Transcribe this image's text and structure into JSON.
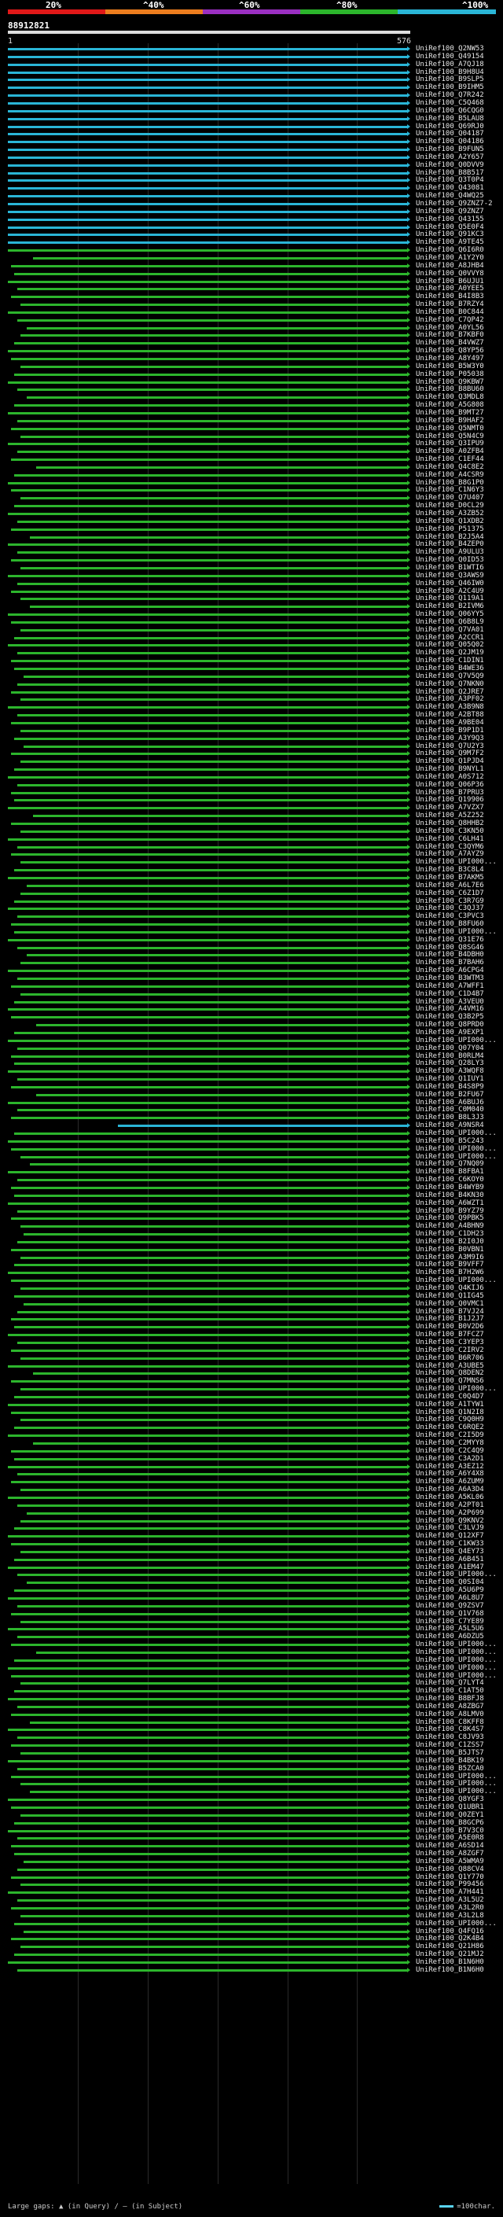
{
  "header": {
    "percent_labels": [
      "20%",
      "^40%",
      "^60%",
      "^80%",
      "^100%"
    ],
    "identity_colors": [
      "#e01818",
      "#ec7d1e",
      "#9a2fc1",
      "#2cb52c",
      "#2ab5d6"
    ],
    "query_id": "88912821",
    "query_start": "1",
    "query_end": "576"
  },
  "legend": {
    "left_text": "Large gaps: ▲ (in Query) / — (in Subject)",
    "right_text": "=100char."
  },
  "hits": [
    "UniRef100_Q2NW53",
    "UniRef100_Q49154",
    "UniRef100_A7QJ18",
    "UniRef100_B9H8U4",
    "UniRef100_B9SLP5",
    "UniRef100_B9IHM5",
    "UniRef100_Q7R242",
    "UniRef100_C5Q468",
    "UniRef100_Q6CQG0",
    "UniRef100_B5LAU8",
    "UniRef100_Q69RJ0",
    "UniRef100_Q04187",
    "UniRef100_Q04186",
    "UniRef100_B9FUN5",
    "UniRef100_A2Y657",
    "UniRef100_Q0DVV9",
    "UniRef100_B8B517",
    "UniRef100_Q3T0P4",
    "UniRef100_Q43081",
    "UniRef100_Q4WQ25",
    "UniRef100_Q9ZNZ7-2",
    "UniRef100_Q9ZNZ7",
    "UniRef100_Q43155",
    "UniRef100_Q5E0F4",
    "UniRef100_Q91KC3",
    "UniRef100_A9TE45",
    "UniRef100_Q6I6R0",
    "UniRef100_A1Y2Y0",
    "UniRef100_A8JHB4",
    "UniRef100_Q0VVY8",
    "UniRef100_B6UJU1",
    "UniRef100_A0YEE5",
    "UniRef100_B4I8B3",
    "UniRef100_B7RZY4",
    "UniRef100_B0C844",
    "UniRef100_C7QP42",
    "UniRef100_A0YL56",
    "UniRef100_B7KBF0",
    "UniRef100_B4VWZ7",
    "UniRef100_Q8YP56",
    "UniRef100_A8Y497",
    "UniRef100_B5W3Y0",
    "UniRef100_P05038",
    "UniRef100_Q9KBW7",
    "UniRef100_B8BU60",
    "UniRef100_Q3MDL8",
    "UniRef100_A5G808",
    "UniRef100_B9MT27",
    "UniRef100_B9HAF2",
    "UniRef100_Q5NMT0",
    "UniRef100_Q5N4C9",
    "UniRef100_Q3IPU9",
    "UniRef100_A0ZFB4",
    "UniRef100_C1EF44",
    "UniRef100_Q4C8E2",
    "UniRef100_A4CSR9",
    "UniRef100_B8G1P0",
    "UniRef100_C1N6Y3",
    "UniRef100_Q7U407",
    "UniRef100_D0CL29",
    "UniRef100_A3ZB52",
    "UniRef100_Q1XDB2",
    "UniRef100_P51375",
    "UniRef100_B2J5A4",
    "UniRef100_B4ZEP0",
    "UniRef100_A9ULU3",
    "UniRef100_Q0ID53",
    "UniRef100_B1WTI6",
    "UniRef100_Q3AWS9",
    "UniRef100_Q46IW0",
    "UniRef100_A2C4U9",
    "UniRef100_Q119A1",
    "UniRef100_B2IVM6",
    "UniRef100_Q06YY5",
    "UniRef100_Q6B8L9",
    "UniRef100_Q7VA01",
    "UniRef100_A2CCR1",
    "UniRef100_Q05Q02",
    "UniRef100_Q2JM19",
    "UniRef100_C1DIN1",
    "UniRef100_B4WE36",
    "UniRef100_Q7V5Q9",
    "UniRef100_Q7NKN0",
    "UniRef100_Q2JRE7",
    "UniRef100_A3PF02",
    "UniRef100_A3B9N8",
    "UniRef100_A2BT88",
    "UniRef100_A9BE04",
    "UniRef100_B9P1D1",
    "UniRef100_A3Y9Q3",
    "UniRef100_Q7U2Y3",
    "UniRef100_Q9M7F2",
    "UniRef100_Q1PJD4",
    "UniRef100_B9NYL1",
    "UniRef100_A0S712",
    "UniRef100_Q06P36",
    "UniRef100_B7PRU3",
    "UniRef100_Q19906",
    "UniRef100_A7VZX7",
    "UniRef100_A5Z252",
    "UniRef100_Q8HHB2",
    "UniRef100_C3KN50",
    "UniRef100_C6LH41",
    "UniRef100_C3QYM6",
    "UniRef100_A7AYZ9",
    "UniRef100_UPI000...",
    "UniRef100_B3C8L4",
    "UniRef100_B7AKM5",
    "UniRef100_A6L7E6",
    "UniRef100_C6Z1D7",
    "UniRef100_C3R7G9",
    "UniRef100_C3QJ37",
    "UniRef100_C3PVC3",
    "UniRef100_B8FU60",
    "UniRef100_UPI000...",
    "UniRef100_Q31E76",
    "UniRef100_Q8SG46",
    "UniRef100_B4DBH0",
    "UniRef100_B7BAH6",
    "UniRef100_A6CPG4",
    "UniRef100_B3WTM3",
    "UniRef100_A7WFF1",
    "UniRef100_C1D4B7",
    "UniRef100_A3VEU0",
    "UniRef100_A4VM16",
    "UniRef100_Q3B2P5",
    "UniRef100_Q8PRD0",
    "UniRef100_A9EXP1",
    "UniRef100_UPI000...",
    "UniRef100_Q07Y04",
    "UniRef100_B0RLM4",
    "UniRef100_Q28LY3",
    "UniRef100_A3WQF8",
    "UniRef100_Q1IUY1",
    "UniRef100_B4S8P9",
    "UniRef100_B2FU67",
    "UniRef100_A6BUJ6",
    "UniRef100_C0M040",
    "UniRef100_B8L3J3",
    "UniRef100_A9NSR4",
    "UniRef100_UPI000...",
    "UniRef100_B5C243",
    "UniRef100_UPI000...",
    "UniRef100_UPI000...",
    "UniRef100_Q7NQ09",
    "UniRef100_B8FBA1",
    "UniRef100_C6KOY0",
    "UniRef100_B4WYB9",
    "UniRef100_B4KN30",
    "UniRef100_A6WZT1",
    "UniRef100_B9YZ79",
    "UniRef100_Q9PBK5",
    "UniRef100_A4BHN9",
    "UniRef100_C1DH23",
    "UniRef100_B2I0J0",
    "UniRef100_B0VBN1",
    "UniRef100_A3M9I6",
    "UniRef100_B9VFF7",
    "UniRef100_B7H2W6",
    "UniRef100_UPI000...",
    "UniRef100_Q4KIJ6",
    "UniRef100_Q1IG45",
    "UniRef100_Q0VMC1",
    "UniRef100_B7VJ24",
    "UniRef100_B1J2J7",
    "UniRef100_B0V2D6",
    "UniRef100_B7FCZ7",
    "UniRef100_C3YEP3",
    "UniRef100_C2IRV2",
    "UniRef100_B6R706",
    "UniRef100_A3UBE5",
    "UniRef100_Q8DEN2",
    "UniRef100_Q7MNS6",
    "UniRef100_UPI000...",
    "UniRef100_C0Q4D7",
    "UniRef100_A1TYW1",
    "UniRef100_Q1N2I8",
    "UniRef100_C9Q0H9",
    "UniRef100_C6RQE2",
    "UniRef100_C2I5D9",
    "UniRef100_C2MYY8",
    "UniRef100_C2C4Q9",
    "UniRef100_C3A2D1",
    "UniRef100_A3EZ12",
    "UniRef100_A6Y4X8",
    "UniRef100_A6ZUM9",
    "UniRef100_A6A3D4",
    "UniRef100_A5KL06",
    "UniRef100_A2PT01",
    "UniRef100_A2P699",
    "UniRef100_Q9KNV2",
    "UniRef100_C3LVJ9",
    "UniRef100_Q12XF7",
    "UniRef100_C1KW33",
    "UniRef100_Q4EY73",
    "UniRef100_A6B451",
    "UniRef100_A1EM47",
    "UniRef100_UPI000...",
    "UniRef100_Q0SI04",
    "UniRef100_A5U6P9",
    "UniRef100_A6L8U7",
    "UniRef100_Q9ZSV7",
    "UniRef100_Q1V768",
    "UniRef100_C7YE89",
    "UniRef100_A5L5U6",
    "UniRef100_A6DZU5",
    "UniRef100_UPI000...",
    "UniRef100_UPI000...",
    "UniRef100_UPI000...",
    "UniRef100_UPI000...",
    "UniRef100_UPI000...",
    "UniRef100_Q7LYT4",
    "UniRef100_C1AT50",
    "UniRef100_B8BFJ8",
    "UniRef100_A8ZBG7",
    "UniRef100_A8LMV0",
    "UniRef100_C8KFF8",
    "UniRef100_C8K4S7",
    "UniRef100_C8JV93",
    "UniRef100_C1ZSS7",
    "UniRef100_B5JTS7",
    "UniRef100_B4BK19",
    "UniRef100_B5ZCA0",
    "UniRef100_UPI000...",
    "UniRef100_UPI000...",
    "UniRef100_UPI000...",
    "UniRef100_Q8YGF3",
    "UniRef100_Q1UBR1",
    "UniRef100_Q0ZEY1",
    "UniRef100_B8GCP6",
    "UniRef100_B7V3C0",
    "UniRef100_A5E0R8",
    "UniRef100_A6SD14",
    "UniRef100_A8ZGF7",
    "UniRef100_A5WMA9",
    "UniRef100_Q88CV4",
    "UniRef100_Q1Y770",
    "UniRef100_P99456",
    "UniRef100_A7H441",
    "UniRef100_A3L5U2",
    "UniRef100_A3L2R0",
    "UniRef100_A3L2L8",
    "UniRef100_UPI000...",
    "UniRef100_Q4FQ16",
    "UniRef100_Q2K4B4",
    "UniRef100_Q21H86",
    "UniRef100_Q21MJ2",
    "UniRef100_B1N6H0",
    "UniRef100_B1N6H0"
  ]
}
